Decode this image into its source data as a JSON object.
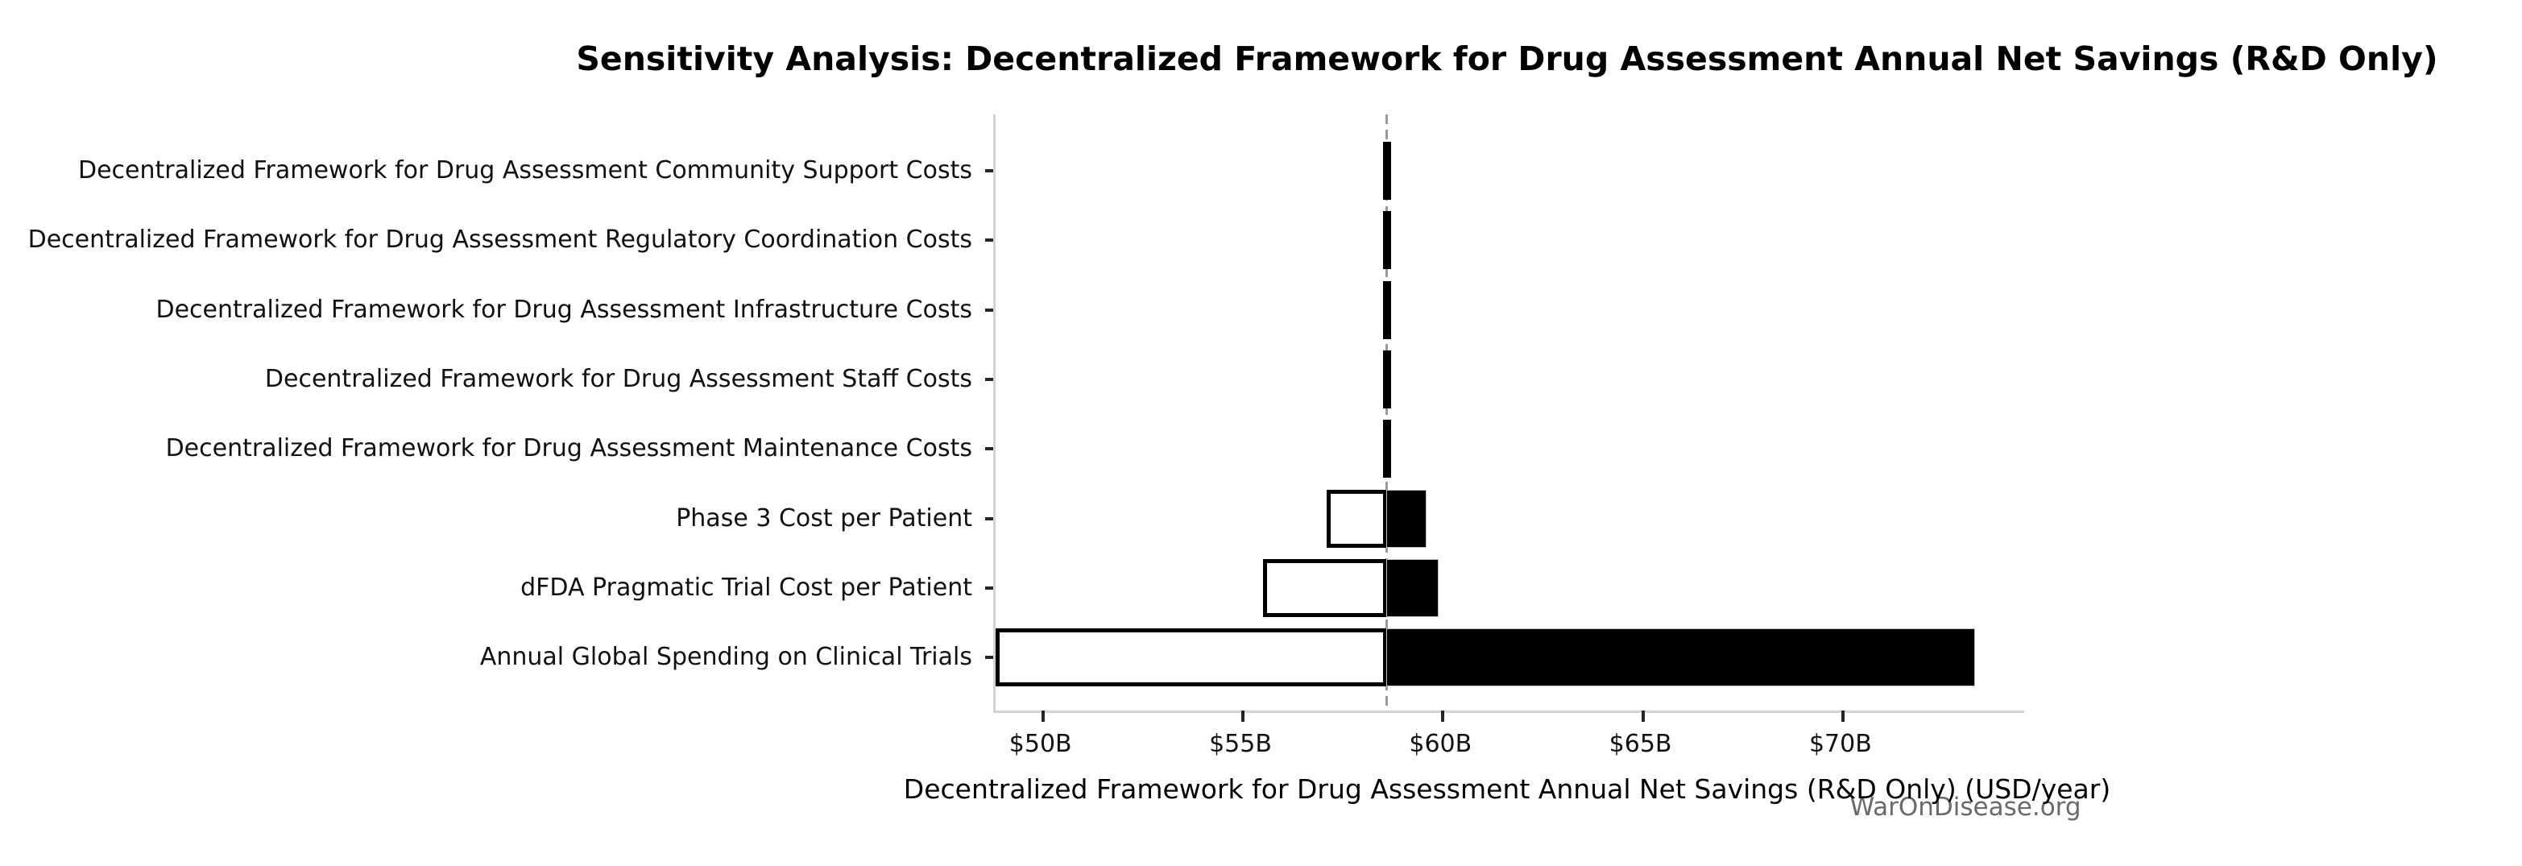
{
  "header": {
    "title": "Sensitivity Analysis: Decentralized Framework for Drug Assessment Annual Net Savings (R&D Only)"
  },
  "footer": {
    "watermark": "WarOnDisease.org"
  },
  "chart_data": {
    "type": "bar",
    "subtype": "tornado-sensitivity",
    "orientation": "horizontal",
    "title": "Sensitivity Analysis: Decentralized Framework for Drug Assessment Annual Net Savings (R&D Only)",
    "xlabel": "Decentralized Framework for Drug Assessment Annual Net Savings (R&D Only) (USD/year)",
    "unit": "USD billions per year",
    "base_value": 58.6,
    "xlim": [
      48.8,
      74.5
    ],
    "grid": false,
    "legend": false,
    "colors": {
      "low_bar_fill": "#ffffff",
      "low_bar_edge": "#000000",
      "high_bar_fill": "#000000",
      "baseline": "#9a9a9a",
      "spine": "#d4d4d4",
      "watermark_text": "#6a6a6a"
    },
    "x_ticks": [
      {
        "label": "$50B",
        "value": 50
      },
      {
        "label": "$55B",
        "value": 55
      },
      {
        "label": "$60B",
        "value": 60
      },
      {
        "label": "$65B",
        "value": 65
      },
      {
        "label": "$70B",
        "value": 70
      }
    ],
    "rows": [
      {
        "label": "Decentralized Framework for Drug Assessment Community Support Costs",
        "low": 58.5,
        "high": 58.7
      },
      {
        "label": "Decentralized Framework for Drug Assessment Regulatory Coordination Costs",
        "low": 58.5,
        "high": 58.7
      },
      {
        "label": "Decentralized Framework for Drug Assessment Infrastructure Costs",
        "low": 58.5,
        "high": 58.7
      },
      {
        "label": "Decentralized Framework for Drug Assessment Staff Costs",
        "low": 58.5,
        "high": 58.7
      },
      {
        "label": "Decentralized Framework for Drug Assessment Maintenance Costs",
        "low": 58.5,
        "high": 58.7
      },
      {
        "label": "Phase 3 Cost per Patient",
        "low": 57.1,
        "high": 59.6
      },
      {
        "label": "dFDA Pragmatic Trial Cost per Patient",
        "low": 55.5,
        "high": 59.9
      },
      {
        "label": "Annual Global Spending on Clinical Trials",
        "low": 48.8,
        "high": 73.3
      }
    ]
  }
}
